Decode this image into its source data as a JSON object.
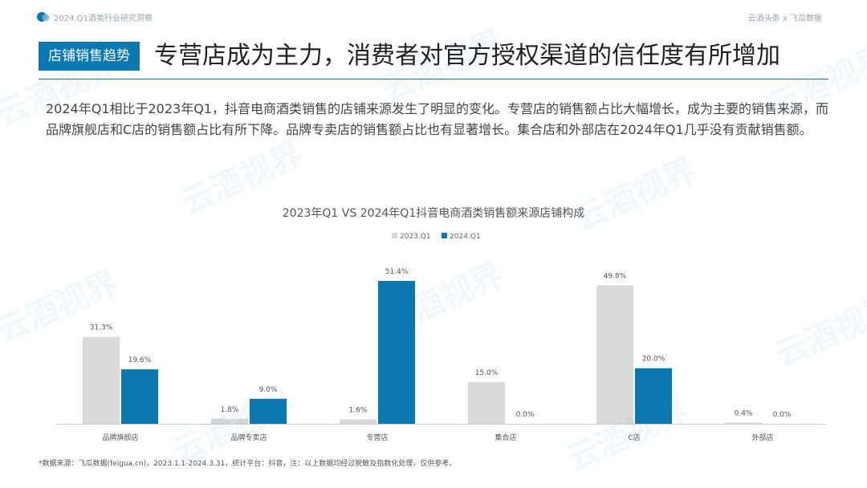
{
  "header": {
    "report_title": "2024.Q1酒类行业研究洞察",
    "brand": "云酒头条 x 飞瓜数据"
  },
  "section_tag": "店铺销售趋势",
  "headline": "专营店成为主力，消费者对官方授权渠道的信任度有所增加",
  "summary": "2024年Q1相比于2023年Q1，抖音电商酒类销售的店铺来源发生了明显的变化。专营店的销售额占比大幅增长，成为主要的销售来源，而品牌旗舰店和C店的销售额占比有所下降。品牌专卖店的销售额占比也有显著增长。集合店和外部店在2024年Q1几乎没有贡献销售额。",
  "watermark": "云酒视界",
  "chart_data": {
    "type": "bar",
    "title": "2023年Q1 VS 2024年Q1抖音电商酒类销售额来源店铺构成",
    "categories": [
      "品牌旗舰店",
      "品牌专卖店",
      "专营店",
      "集合店",
      "C店",
      "外部店"
    ],
    "series": [
      {
        "name": "2023.Q1",
        "color": "#d9d9d9",
        "values": [
          31.3,
          1.8,
          1.6,
          15.0,
          49.8,
          0.4
        ]
      },
      {
        "name": "2024.Q1",
        "color": "#0a79b2",
        "values": [
          19.6,
          9.0,
          51.4,
          0.0,
          20.0,
          0.0
        ]
      }
    ],
    "value_suffix": "%",
    "legend_position": "top-center",
    "grid": false,
    "ylim": [
      0,
      51.4
    ]
  },
  "footnote": "*数据来源：飞瓜数据(feigua.cn)，2023.1.1-2024.3.31，统计平台：抖音，注：以上数据均经过脱敏及指数化处理，仅供参考。"
}
